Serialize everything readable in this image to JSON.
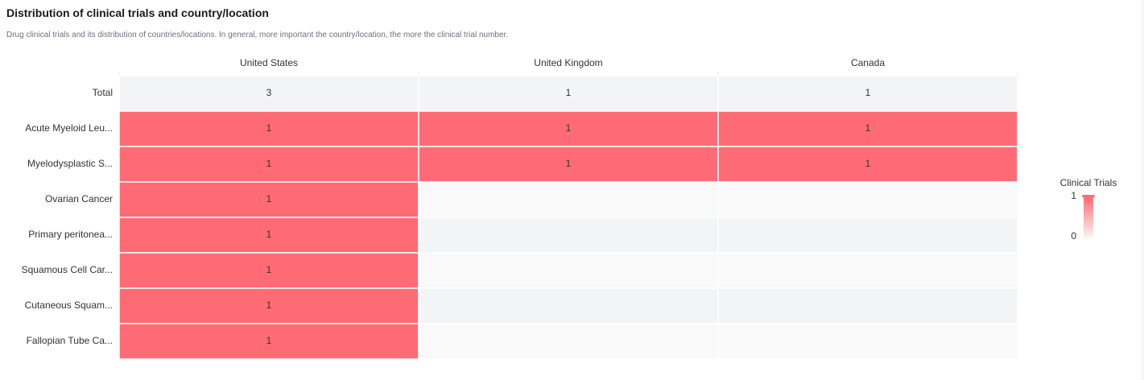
{
  "header": {
    "title": "Distribution of clinical trials and country/location",
    "subtitle": "Drug clinical trials and its distribution of countries/locations. In general, more important the country/location, the more the clinical trial number."
  },
  "colors": {
    "high": "#ff6b74",
    "low": "#f9f9f9",
    "total_row": "#f3f4f6",
    "row_stripe_a": "#f3f4f6",
    "row_stripe_b": "#f9f9f9"
  },
  "chart_data": {
    "type": "heatmap",
    "columns": [
      "United States",
      "United Kingdom",
      "Canada"
    ],
    "rows": [
      "Total",
      "Acute Myeloid Leu...",
      "Myelodysplastic S...",
      "Ovarian Cancer",
      "Primary peritonea...",
      "Squamous Cell Car...",
      "Cutaneous Squam...",
      "Fallopian Tube Ca..."
    ],
    "values": [
      [
        3,
        1,
        1
      ],
      [
        1,
        1,
        1
      ],
      [
        1,
        1,
        1
      ],
      [
        1,
        null,
        null
      ],
      [
        1,
        null,
        null
      ],
      [
        1,
        null,
        null
      ],
      [
        1,
        null,
        null
      ],
      [
        1,
        null,
        null
      ]
    ],
    "legend": {
      "title": "Clinical Trials",
      "max_label": "1",
      "min_label": "0",
      "position": "right"
    }
  }
}
